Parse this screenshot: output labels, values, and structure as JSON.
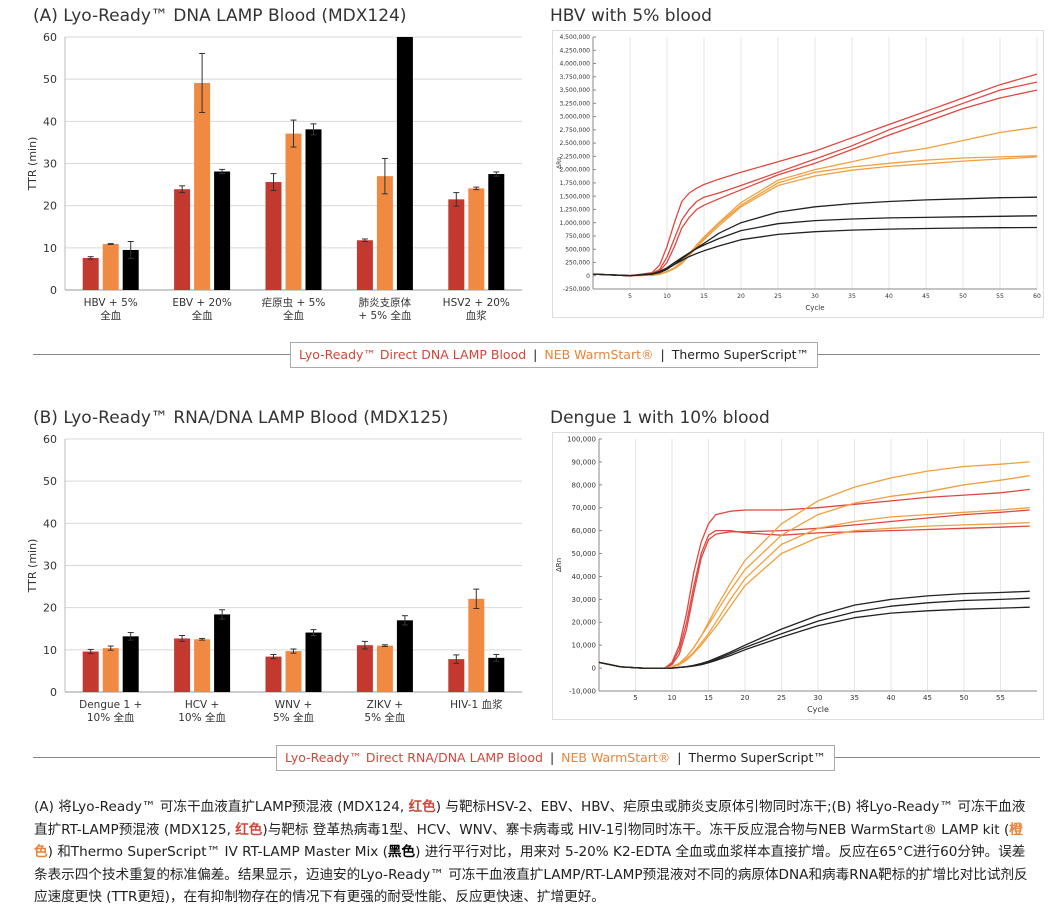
{
  "colors": {
    "red": "#c4392f",
    "orange": "#f08a43",
    "black": "#000000",
    "grid": "#d8d8d8",
    "line_red": "#e0473f",
    "line_orange": "#f0a040",
    "line_black": "#222222"
  },
  "panelA": {
    "title": "(A) Lyo-Ready™ DNA LAMP Blood (MDX124)",
    "legend": {
      "red": "Lyo-Ready™ Direct DNA LAMP Blood",
      "orange": "NEB WarmStart®",
      "black": "Thermo SuperScript™",
      "sep": "|"
    }
  },
  "panelB": {
    "title": "(B) Lyo-Ready™ RNA/DNA LAMP Blood (MDX125)",
    "legend": {
      "red": "Lyo-Ready™ Direct RNA/DNA LAMP Blood",
      "orange": "NEB WarmStart®",
      "black": "Thermo SuperScript™",
      "sep": "|"
    }
  },
  "chart_data": [
    {
      "id": "barA",
      "type": "bar",
      "title": "",
      "ylabel": "TTR (min)",
      "ylim": [
        0,
        60
      ],
      "yticks": [
        0,
        10,
        20,
        30,
        40,
        50,
        60
      ],
      "categories": [
        [
          "HBV + 5%",
          "全血"
        ],
        [
          "EBV + 20%",
          "全血"
        ],
        [
          "疟原虫 + 5%",
          "全血"
        ],
        [
          "肺炎支原体",
          "+ 5% 全血"
        ],
        [
          "HSV2 + 20%",
          "血浆"
        ]
      ],
      "series": [
        {
          "color": "red",
          "values": [
            7.6,
            23.9,
            25.6,
            11.8,
            21.5
          ],
          "errors": [
            0.3,
            0.8,
            2.0,
            0.3,
            1.6
          ]
        },
        {
          "color": "orange",
          "values": [
            10.9,
            49.1,
            37.1,
            27.0,
            24.1
          ],
          "errors": [
            0.1,
            7.0,
            3.2,
            4.2,
            0.3
          ]
        },
        {
          "color": "black",
          "values": [
            9.5,
            28.1,
            38.1,
            60,
            27.5
          ],
          "errors": [
            2.0,
            0.5,
            1.3,
            0,
            0.5
          ]
        }
      ]
    },
    {
      "id": "lineA",
      "type": "line",
      "title": "HBV with 5% blood",
      "xlabel": "Cycle",
      "ylabel": "ΔRn",
      "xlim": [
        0,
        60
      ],
      "ylim": [
        -250000,
        4500000
      ],
      "xticks": [
        5,
        10,
        15,
        20,
        25,
        30,
        35,
        40,
        45,
        50,
        55,
        60
      ],
      "yticks": [
        -250000,
        0,
        250000,
        500000,
        750000,
        1000000,
        1250000,
        1500000,
        1750000,
        2000000,
        2250000,
        2500000,
        2750000,
        3000000,
        3250000,
        3500000,
        3750000,
        4000000,
        4250000,
        4500000
      ],
      "ytick_labels": [
        "-250,000",
        "0",
        "250,000",
        "500,000",
        "750,000",
        "1,000,000",
        "1,250,000",
        "1,500,000",
        "1,750,000",
        "2,000,000",
        "2,250,000",
        "2,500,000",
        "2,750,000",
        "3,000,000",
        "3,250,000",
        "3,500,000",
        "3,750,000",
        "4,000,000",
        "4,250,000",
        "4,500,000"
      ],
      "x": [
        0,
        5,
        8,
        9,
        10,
        11,
        12,
        13,
        14,
        15,
        17,
        20,
        25,
        30,
        35,
        40,
        45,
        50,
        55,
        60
      ],
      "series": [
        {
          "color": "line_red",
          "values": [
            30000,
            0,
            60000,
            200000,
            550000,
            1000000,
            1400000,
            1560000,
            1650000,
            1720000,
            1820000,
            1950000,
            2150000,
            2350000,
            2600000,
            2850000,
            3100000,
            3350000,
            3600000,
            3800000
          ]
        },
        {
          "color": "line_red",
          "values": [
            30000,
            0,
            40000,
            120000,
            350000,
            700000,
            1050000,
            1250000,
            1400000,
            1480000,
            1560000,
            1700000,
            1950000,
            2200000,
            2450000,
            2750000,
            3000000,
            3250000,
            3500000,
            3650000
          ]
        },
        {
          "color": "line_red",
          "values": [
            30000,
            0,
            30000,
            90000,
            250000,
            550000,
            900000,
            1100000,
            1250000,
            1330000,
            1450000,
            1620000,
            1900000,
            2120000,
            2380000,
            2650000,
            2900000,
            3150000,
            3350000,
            3500000
          ]
        },
        {
          "color": "line_orange",
          "values": [
            30000,
            0,
            10000,
            30000,
            80000,
            150000,
            260000,
            420000,
            580000,
            730000,
            1000000,
            1380000,
            1800000,
            2000000,
            2150000,
            2300000,
            2400000,
            2550000,
            2700000,
            2800000
          ]
        },
        {
          "color": "line_orange",
          "values": [
            30000,
            0,
            10000,
            30000,
            80000,
            150000,
            250000,
            400000,
            560000,
            710000,
            980000,
            1330000,
            1750000,
            1950000,
            2050000,
            2120000,
            2180000,
            2220000,
            2240000,
            2260000
          ]
        },
        {
          "color": "line_orange",
          "values": [
            30000,
            0,
            10000,
            25000,
            70000,
            130000,
            230000,
            380000,
            530000,
            680000,
            940000,
            1300000,
            1700000,
            1880000,
            1990000,
            2060000,
            2110000,
            2160000,
            2200000,
            2240000
          ]
        },
        {
          "color": "line_black",
          "values": [
            30000,
            0,
            30000,
            60000,
            120000,
            220000,
            320000,
            420000,
            520000,
            610000,
            800000,
            1000000,
            1200000,
            1300000,
            1360000,
            1400000,
            1430000,
            1450000,
            1470000,
            1480000
          ]
        },
        {
          "color": "line_black",
          "values": [
            30000,
            0,
            40000,
            80000,
            150000,
            250000,
            340000,
            430000,
            510000,
            580000,
            700000,
            850000,
            980000,
            1040000,
            1070000,
            1090000,
            1100000,
            1110000,
            1120000,
            1130000
          ]
        },
        {
          "color": "line_black",
          "values": [
            30000,
            0,
            30000,
            70000,
            130000,
            210000,
            290000,
            360000,
            420000,
            470000,
            560000,
            680000,
            780000,
            830000,
            860000,
            880000,
            890000,
            900000,
            905000,
            910000
          ]
        }
      ]
    },
    {
      "id": "barB",
      "type": "bar",
      "title": "",
      "ylabel": "TTR (min)",
      "ylim": [
        0,
        60
      ],
      "yticks": [
        0,
        10,
        20,
        30,
        40,
        50,
        60
      ],
      "categories": [
        [
          "Dengue 1 +",
          "10% 全血"
        ],
        [
          "HCV +",
          "10% 全血"
        ],
        [
          "WNV +",
          "5% 全血"
        ],
        [
          "ZIKV +",
          "5% 全血"
        ],
        [
          "HIV-1 血浆"
        ]
      ],
      "series": [
        {
          "color": "red",
          "values": [
            9.6,
            12.7,
            8.4,
            11.1,
            7.8
          ],
          "errors": [
            0.5,
            0.7,
            0.5,
            0.9,
            1.0
          ]
        },
        {
          "color": "orange",
          "values": [
            10.4,
            12.5,
            9.7,
            11.0,
            22.1
          ],
          "errors": [
            0.5,
            0.2,
            0.5,
            0.2,
            2.3
          ]
        },
        {
          "color": "black",
          "values": [
            13.2,
            18.4,
            14.1,
            17.0,
            8.1
          ],
          "errors": [
            0.9,
            1.1,
            0.7,
            1.1,
            0.8
          ]
        }
      ]
    },
    {
      "id": "lineB",
      "type": "line",
      "title": "Dengue 1 with 10% blood",
      "xlabel": "Cycle",
      "ylabel": "ΔRn",
      "xlim": [
        0,
        60
      ],
      "ylim": [
        -10000,
        100000
      ],
      "xticks": [
        5,
        10,
        15,
        20,
        25,
        30,
        35,
        40,
        45,
        50,
        55
      ],
      "yticks": [
        -10000,
        0,
        10000,
        20000,
        30000,
        40000,
        50000,
        60000,
        70000,
        80000,
        90000,
        100000
      ],
      "ytick_labels": [
        "-10,000",
        "0",
        "10,000",
        "20,000",
        "30,000",
        "40,000",
        "50,000",
        "60,000",
        "70,000",
        "80,000",
        "90,000",
        "100,000"
      ],
      "x": [
        0,
        3,
        6,
        9,
        10,
        11,
        12,
        13,
        14,
        15,
        16,
        18,
        20,
        25,
        30,
        35,
        40,
        45,
        50,
        55,
        59
      ],
      "series": [
        {
          "color": "line_red",
          "values": [
            2500,
            500,
            0,
            0,
            2000,
            8000,
            20000,
            36000,
            50000,
            58000,
            60000,
            60000,
            59000,
            58000,
            59000,
            59500,
            60000,
            60500,
            61000,
            61500,
            62000
          ]
        },
        {
          "color": "line_red",
          "values": [
            2500,
            500,
            0,
            0,
            1500,
            6000,
            17000,
            33000,
            48000,
            56000,
            58500,
            59500,
            59500,
            60000,
            61000,
            62500,
            64000,
            65500,
            67000,
            68000,
            69000
          ]
        },
        {
          "color": "line_red",
          "values": [
            2500,
            500,
            0,
            0,
            2500,
            10000,
            24000,
            42000,
            55000,
            63000,
            67000,
            68500,
            69000,
            69000,
            70000,
            71500,
            73000,
            74500,
            75500,
            76500,
            78000
          ]
        },
        {
          "color": "line_orange",
          "values": [
            2500,
            500,
            0,
            0,
            500,
            2000,
            5000,
            9000,
            14000,
            19000,
            24000,
            34000,
            43000,
            58000,
            67000,
            72000,
            75000,
            77000,
            80000,
            82000,
            84000
          ]
        },
        {
          "color": "line_orange",
          "values": [
            2500,
            500,
            0,
            0,
            500,
            2000,
            5000,
            9000,
            14000,
            20000,
            26000,
            37000,
            47000,
            63000,
            73000,
            79000,
            83000,
            86000,
            88000,
            89000,
            90000
          ]
        },
        {
          "color": "line_orange",
          "values": [
            2500,
            500,
            0,
            0,
            400,
            1500,
            4000,
            7000,
            11000,
            15000,
            20000,
            30000,
            39000,
            54000,
            61000,
            64000,
            66000,
            67000,
            68000,
            69000,
            70000
          ]
        },
        {
          "color": "line_orange",
          "values": [
            2500,
            500,
            0,
            0,
            400,
            1500,
            3500,
            6500,
            10000,
            14000,
            18000,
            27000,
            36000,
            50000,
            57000,
            60000,
            61000,
            62000,
            62500,
            63000,
            63500
          ]
        },
        {
          "color": "line_black",
          "values": [
            2500,
            500,
            0,
            0,
            0,
            300,
            600,
            1200,
            2000,
            3000,
            4300,
            7000,
            10000,
            17000,
            23000,
            27500,
            30000,
            31500,
            32500,
            33000,
            33500
          ]
        },
        {
          "color": "line_black",
          "values": [
            2500,
            500,
            0,
            0,
            0,
            300,
            600,
            1100,
            1800,
            2700,
            3800,
            6300,
            9000,
            15000,
            20500,
            24500,
            27000,
            28500,
            29500,
            30000,
            30500
          ]
        },
        {
          "color": "line_black",
          "values": [
            2500,
            500,
            0,
            0,
            0,
            250,
            500,
            900,
            1500,
            2300,
            3300,
            5500,
            8000,
            13500,
            18500,
            22000,
            24000,
            25000,
            25700,
            26200,
            26600
          ]
        }
      ]
    }
  ],
  "caption": {
    "p1": "(A) 将Lyo-Ready™ 可冻干血液直扩LAMP预混液 (MDX124, ",
    "red1": "红色",
    "p2": ") 与靶标HSV-2、EBV、HBV、疟原虫或肺炎支原体引物同时冻干;(B) 将Lyo-Ready™ 可冻干血液直扩RT-LAMP预混液 (MDX125, ",
    "red2": "红色",
    "p3": ")与靶标 登革热病毒1型、HCV、WNV、寨卡病毒或 HIV-1引物同时冻干。冻干反应混合物与NEB WarmStart® LAMP kit (",
    "orange": "橙色",
    "p4": ") 和Thermo SuperScript™ IV RT-LAMP Master Mix (",
    "black": "黑色",
    "p5": ") 进行平行对比，用来对 5-20% K2-EDTA 全血或血浆样本直接扩增。反应在65°C进行60分钟。误差条表示四个技术重复的标准偏差。结果显示，迈迪安的Lyo-Ready™ 可冻干血液直扩LAMP/RT-LAMP预混液对不同的病原体DNA和病毒RNA靶标的扩增比对比试剂反应速度更快 (TTR更短)，在有抑制物存在的情况下有更强的耐受性能、反应更快速、扩增更好。"
  }
}
